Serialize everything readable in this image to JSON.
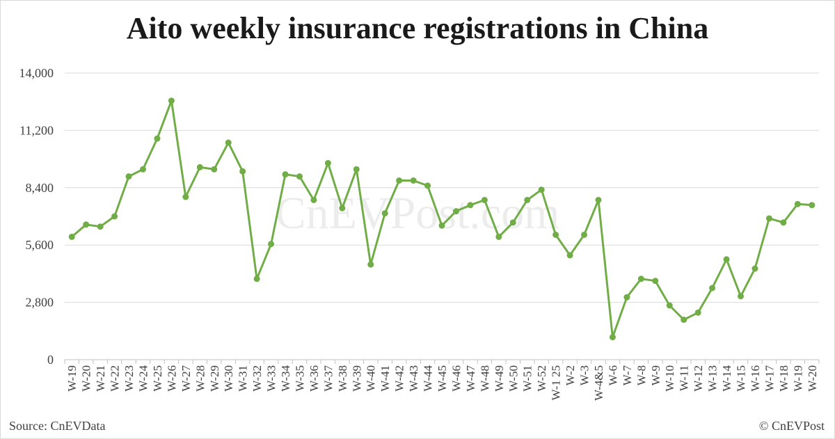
{
  "title": "Aito weekly insurance registrations in China",
  "source": "Source: CnEVData",
  "copyright": "© CnEVPost",
  "watermark": "CnEVPost.com",
  "colors": {
    "line": "#70ad47",
    "grid": "#d9d9d9",
    "text": "#404040"
  },
  "chart_data": {
    "type": "line",
    "title": "Aito weekly insurance registrations in China",
    "xlabel": "",
    "ylabel": "",
    "ylim": [
      0,
      14000
    ],
    "yticks": [
      0,
      2800,
      5600,
      8400,
      11200,
      14000
    ],
    "ytick_labels": [
      "0",
      "2,800",
      "5,600",
      "8,400",
      "11,200",
      "14,000"
    ],
    "grid": true,
    "legend": "none",
    "categories": [
      "W-19",
      "W-20",
      "W-21",
      "W-22",
      "W-23",
      "W-24",
      "W-25",
      "W-26",
      "W-27",
      "W-28",
      "W-29",
      "W-30",
      "W-31",
      "W-32",
      "W-33",
      "W-34",
      "W-35",
      "W-36",
      "W-37",
      "W-38",
      "W-39",
      "W-40",
      "W-41",
      "W-42",
      "W-43",
      "W-44",
      "W-45",
      "W-46",
      "W-47",
      "W-48",
      "W-49",
      "W-50",
      "W-51",
      "W-52",
      "W-1 25",
      "W-2",
      "W-3",
      "W-4&5",
      "W-6",
      "W-7",
      "W-8",
      "W-9",
      "W-10",
      "W-11",
      "W-12",
      "W-13",
      "W-14",
      "W-15",
      "W-16",
      "W-17",
      "W-18",
      "W-19",
      "W-20"
    ],
    "values": [
      6000,
      6600,
      6500,
      7000,
      8950,
      9300,
      10800,
      12650,
      7950,
      9400,
      9300,
      10600,
      9200,
      3950,
      5650,
      9050,
      8950,
      7800,
      9600,
      7400,
      9300,
      4650,
      7150,
      8750,
      8750,
      8500,
      6550,
      7250,
      7550,
      7800,
      6000,
      6700,
      7800,
      8300,
      6100,
      5100,
      6100,
      7800,
      1100,
      3050,
      3950,
      3850,
      2650,
      1950,
      2300,
      3500,
      4900,
      3100,
      4450,
      6900,
      6700,
      7600,
      7550
    ]
  }
}
